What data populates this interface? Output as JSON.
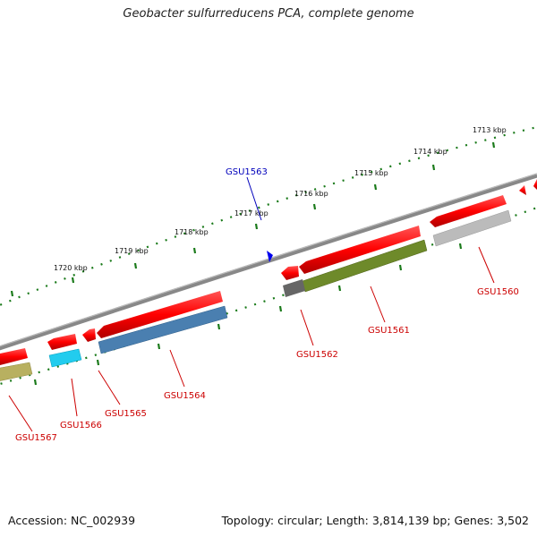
{
  "title": "Geobacter sulfurreducens PCA, complete genome",
  "footer": {
    "accession": "Accession: NC_002939",
    "summary": "Topology: circular; Length: 3,814,139 bp; Genes: 3,502"
  },
  "colors": {
    "backbone": "#777777",
    "tick": "#1a7a1a",
    "cds_strand": "#ff0000",
    "label": "#cc0000",
    "highlight": "#0000bb"
  },
  "ticks": [
    "1713 kbp",
    "1714 kbp",
    "1715 kbp",
    "1716 kbp",
    "1717 kbp",
    "1718 kbp",
    "1719 kbp",
    "1720 kbp"
  ],
  "genes": [
    {
      "label": "GSU1567",
      "color": "#b8b060",
      "direction": "forward"
    },
    {
      "label": "GSU1566",
      "color": "#22ccee",
      "direction": "reverse"
    },
    {
      "label": "GSU1565",
      "color": "",
      "direction": "reverse"
    },
    {
      "label": "GSU1564",
      "color": "#4a7fb0",
      "direction": "reverse"
    },
    {
      "label": "GSU1562",
      "color": "#666666",
      "direction": "reverse"
    },
    {
      "label": "GSU1561",
      "color": "#6e8a2a",
      "direction": "reverse"
    },
    {
      "label": "GSU1560",
      "color": "#bbbbbb",
      "direction": "reverse"
    }
  ],
  "highlight": {
    "label": "GSU1563",
    "icon": "pointer-arrow-icon"
  }
}
